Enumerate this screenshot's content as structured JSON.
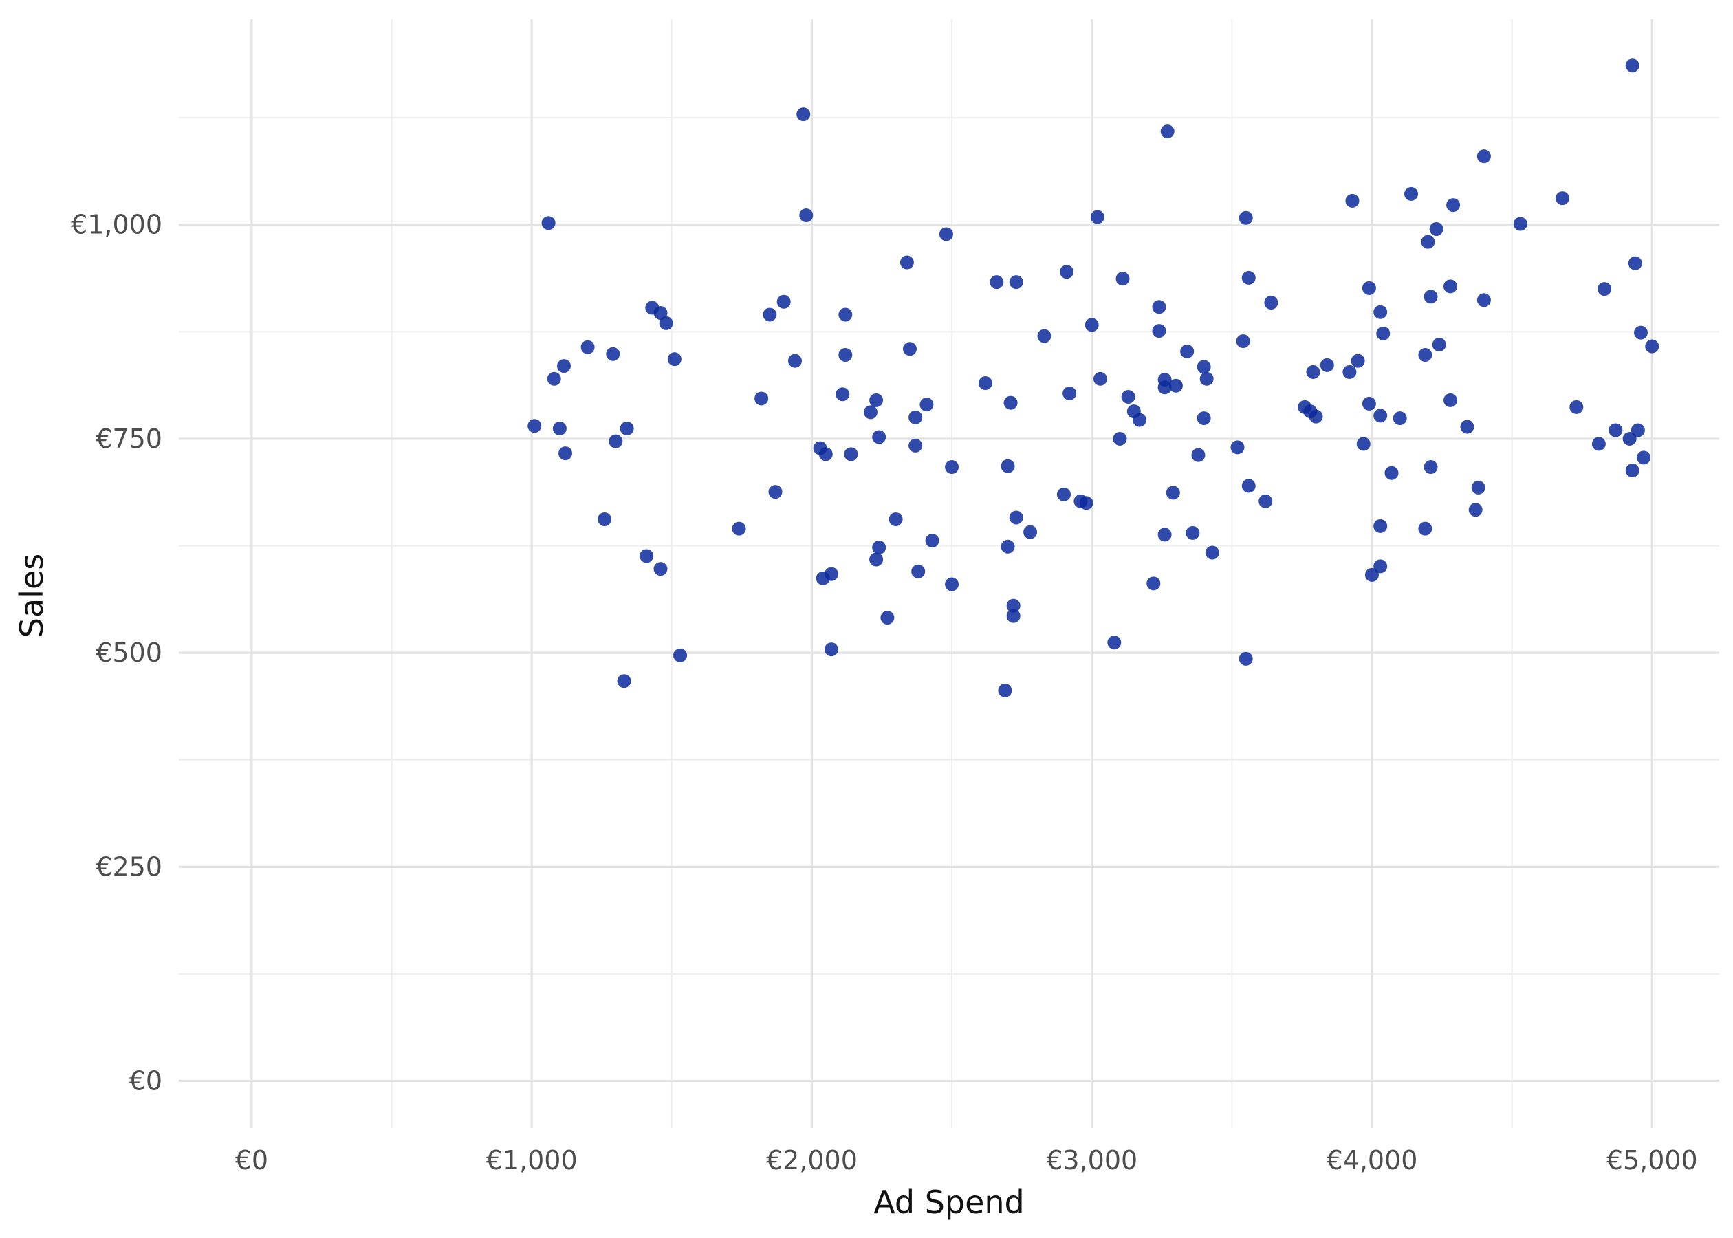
{
  "chart_data": {
    "type": "scatter",
    "xlabel": "Ad Spend",
    "ylabel": "Sales",
    "xlim": [
      -260,
      5240
    ],
    "ylim": [
      -55,
      1240
    ],
    "x_ticks": [
      0,
      1000,
      2000,
      3000,
      4000,
      5000
    ],
    "x_tick_labels": [
      "€0",
      "€1,000",
      "€2,000",
      "€3,000",
      "€4,000",
      "€5,000"
    ],
    "x_minor_ticks": [
      500,
      1500,
      2500,
      3500,
      4500
    ],
    "y_ticks": [
      0,
      250,
      500,
      750,
      1000
    ],
    "y_tick_labels": [
      "€0",
      "€250",
      "€500",
      "€750",
      "€1,000"
    ],
    "y_minor_ticks": [
      125,
      375,
      625,
      875,
      1125
    ],
    "grid": true,
    "legend": "none",
    "point_color": "#0a2a9b",
    "series": [
      {
        "points": [
          [
            1010,
            765
          ],
          [
            1060,
            1002
          ],
          [
            1080,
            820
          ],
          [
            1100,
            762
          ],
          [
            1115,
            835
          ],
          [
            1120,
            733
          ],
          [
            1200,
            857
          ],
          [
            1260,
            656
          ],
          [
            1290,
            849
          ],
          [
            1300,
            747
          ],
          [
            1330,
            467
          ],
          [
            1340,
            762
          ],
          [
            1410,
            613
          ],
          [
            1430,
            903
          ],
          [
            1460,
            897
          ],
          [
            1460,
            598
          ],
          [
            1480,
            885
          ],
          [
            1510,
            843
          ],
          [
            1530,
            497
          ],
          [
            1740,
            645
          ],
          [
            1820,
            797
          ],
          [
            1850,
            895
          ],
          [
            1870,
            688
          ],
          [
            1900,
            910
          ],
          [
            1940,
            841
          ],
          [
            1970,
            1129
          ],
          [
            1980,
            1011
          ],
          [
            2030,
            739
          ],
          [
            2040,
            587
          ],
          [
            2050,
            732
          ],
          [
            2070,
            592
          ],
          [
            2070,
            504
          ],
          [
            2110,
            802
          ],
          [
            2120,
            895
          ],
          [
            2120,
            848
          ],
          [
            2140,
            732
          ],
          [
            2210,
            781
          ],
          [
            2230,
            795
          ],
          [
            2230,
            609
          ],
          [
            2240,
            752
          ],
          [
            2240,
            623
          ],
          [
            2270,
            541
          ],
          [
            2300,
            656
          ],
          [
            2340,
            956
          ],
          [
            2350,
            855
          ],
          [
            2370,
            742
          ],
          [
            2370,
            775
          ],
          [
            2380,
            595
          ],
          [
            2410,
            790
          ],
          [
            2430,
            631
          ],
          [
            2480,
            989
          ],
          [
            2500,
            580
          ],
          [
            2500,
            717
          ],
          [
            2620,
            815
          ],
          [
            2660,
            933
          ],
          [
            2690,
            456
          ],
          [
            2700,
            624
          ],
          [
            2700,
            718
          ],
          [
            2710,
            792
          ],
          [
            2720,
            555
          ],
          [
            2720,
            543
          ],
          [
            2730,
            658
          ],
          [
            2730,
            933
          ],
          [
            2780,
            641
          ],
          [
            2830,
            870
          ],
          [
            2900,
            685
          ],
          [
            2910,
            945
          ],
          [
            2920,
            803
          ],
          [
            2960,
            677
          ],
          [
            2980,
            675
          ],
          [
            3000,
            883
          ],
          [
            3020,
            1009
          ],
          [
            3030,
            820
          ],
          [
            3080,
            512
          ],
          [
            3100,
            750
          ],
          [
            3110,
            937
          ],
          [
            3130,
            799
          ],
          [
            3150,
            782
          ],
          [
            3170,
            772
          ],
          [
            3240,
            904
          ],
          [
            3240,
            876
          ],
          [
            3220,
            581
          ],
          [
            3260,
            819
          ],
          [
            3270,
            1109
          ],
          [
            3260,
            638
          ],
          [
            3260,
            810
          ],
          [
            3290,
            687
          ],
          [
            3300,
            812
          ],
          [
            3340,
            852
          ],
          [
            3360,
            640
          ],
          [
            3380,
            731
          ],
          [
            3400,
            774
          ],
          [
            3400,
            834
          ],
          [
            3410,
            820
          ],
          [
            3430,
            617
          ],
          [
            3520,
            740
          ],
          [
            3540,
            864
          ],
          [
            3550,
            1008
          ],
          [
            3550,
            493
          ],
          [
            3560,
            938
          ],
          [
            3560,
            695
          ],
          [
            3620,
            677
          ],
          [
            3640,
            909
          ],
          [
            3760,
            787
          ],
          [
            3780,
            782
          ],
          [
            3790,
            828
          ],
          [
            3800,
            776
          ],
          [
            3840,
            836
          ],
          [
            3920,
            828
          ],
          [
            3930,
            1028
          ],
          [
            3950,
            841
          ],
          [
            3970,
            744
          ],
          [
            3990,
            926
          ],
          [
            3990,
            791
          ],
          [
            4000,
            591
          ],
          [
            4030,
            648
          ],
          [
            4030,
            601
          ],
          [
            4030,
            898
          ],
          [
            4030,
            777
          ],
          [
            4040,
            873
          ],
          [
            4070,
            710
          ],
          [
            4100,
            774
          ],
          [
            4140,
            1036
          ],
          [
            4190,
            848
          ],
          [
            4190,
            645
          ],
          [
            4200,
            980
          ],
          [
            4210,
            916
          ],
          [
            4210,
            717
          ],
          [
            4230,
            995
          ],
          [
            4240,
            860
          ],
          [
            4280,
            928
          ],
          [
            4280,
            795
          ],
          [
            4290,
            1023
          ],
          [
            4340,
            764
          ],
          [
            4370,
            667
          ],
          [
            4380,
            693
          ],
          [
            4400,
            1080
          ],
          [
            4400,
            912
          ],
          [
            4530,
            1001
          ],
          [
            4680,
            1031
          ],
          [
            4730,
            787
          ],
          [
            4810,
            744
          ],
          [
            4830,
            925
          ],
          [
            4870,
            760
          ],
          [
            4920,
            750
          ],
          [
            4930,
            713
          ],
          [
            4930,
            1186
          ],
          [
            4940,
            955
          ],
          [
            4950,
            760
          ],
          [
            4960,
            874
          ],
          [
            4970,
            728
          ],
          [
            5000,
            858
          ]
        ]
      }
    ]
  }
}
